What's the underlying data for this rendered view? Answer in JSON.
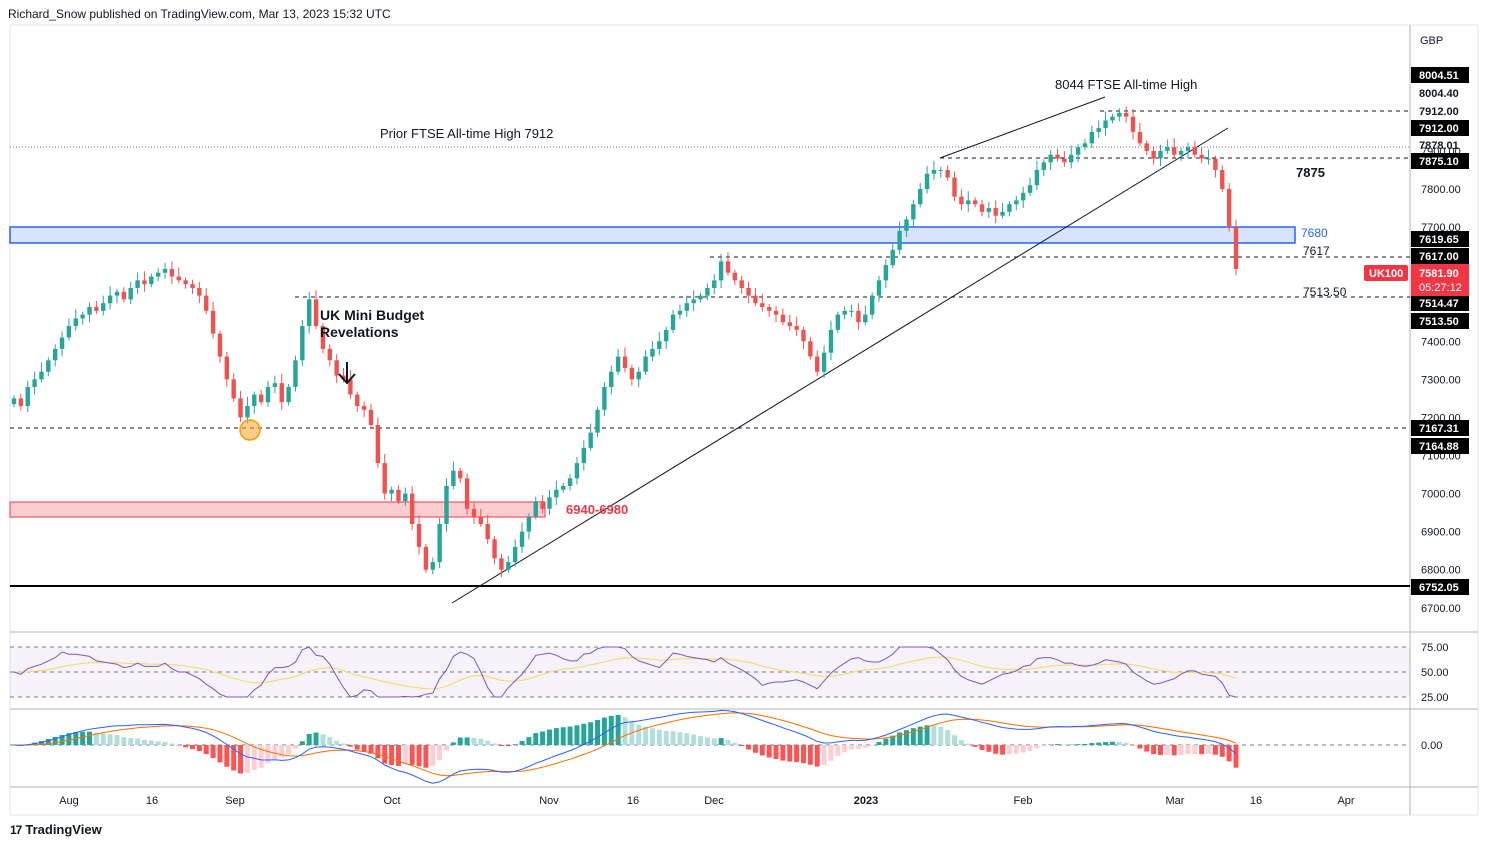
{
  "header": {
    "publisher": "Richard_Snow published on TradingView.com, Mar 13, 2023 15:32 UTC"
  },
  "footer": {
    "logo_text": "TradingView",
    "logo_mark": "17"
  },
  "colors": {
    "up": "#26a69a",
    "down": "#ef5350",
    "blue_zone": "#2962ff",
    "red_zone": "#f23645"
  },
  "chart_data": {
    "type": "candlestick",
    "symbol": "UK100",
    "currency": "GBP",
    "last_price": "7581.90",
    "countdown": "05:27:12",
    "x_ticks": [
      "Aug",
      "16",
      "Sep",
      "Oct",
      "Nov",
      "16",
      "Dec",
      "2023",
      "Feb",
      "Mar",
      "16",
      "Apr"
    ],
    "y_ticks": [
      "7900.00",
      "7800.00",
      "7700.00",
      "7600.00",
      "7500.00",
      "7400.00",
      "7300.00",
      "7200.00",
      "7100.00",
      "7000.00",
      "6900.00",
      "6800.00",
      "6700.00"
    ],
    "price_labels": [
      {
        "value": "8004.51",
        "style": "dark"
      },
      {
        "value": "8004.40",
        "style": "none"
      },
      {
        "value": "7912.00",
        "style": "none"
      },
      {
        "value": "7912.00",
        "style": "dark"
      },
      {
        "value": "7878.01",
        "style": "none"
      },
      {
        "value": "7875.10",
        "style": "dark"
      },
      {
        "value": "7619.65",
        "style": "dark"
      },
      {
        "value": "7617.00",
        "style": "dark"
      },
      {
        "value": "7514.47",
        "style": "dark"
      },
      {
        "value": "7513.50",
        "style": "dark"
      },
      {
        "value": "7167.31",
        "style": "dark"
      },
      {
        "value": "7164.88",
        "style": "dark"
      },
      {
        "value": "6752.05",
        "style": "dark"
      }
    ],
    "annotations": [
      {
        "text": "8044 FTSE All-time High"
      },
      {
        "text": "Prior FTSE All-time High 7912"
      },
      {
        "text": "7875"
      },
      {
        "text": "7680"
      },
      {
        "text": "7617"
      },
      {
        "text": "7513.50"
      },
      {
        "text": "UK Mini Budget"
      },
      {
        "text": "Revelations"
      },
      {
        "text": "6940-6980"
      }
    ],
    "zones": [
      {
        "label": "7680",
        "from": 7660,
        "to": 7700,
        "color": "blue"
      },
      {
        "label": "6940-6980",
        "from": 6940,
        "to": 6980,
        "color": "red"
      }
    ],
    "levels": [
      7912,
      7875,
      7617,
      7513.5,
      7167,
      6752
    ],
    "candles_close": [
      7250,
      7230,
      7280,
      7300,
      7320,
      7350,
      7380,
      7410,
      7440,
      7460,
      7470,
      7490,
      7480,
      7500,
      7520,
      7530,
      7510,
      7540,
      7560,
      7550,
      7570,
      7580,
      7590,
      7570,
      7560,
      7550,
      7540,
      7520,
      7480,
      7420,
      7360,
      7300,
      7250,
      7200,
      7230,
      7260,
      7240,
      7280,
      7290,
      7240,
      7280,
      7350,
      7440,
      7510,
      7440,
      7380,
      7350,
      7310,
      7300,
      7260,
      7230,
      7220,
      7180,
      7080,
      7000,
      7010,
      6980,
      7000,
      6920,
      6860,
      6800,
      6820,
      6920,
      7020,
      7060,
      7040,
      6960,
      6940,
      6920,
      6880,
      6830,
      6800,
      6820,
      6860,
      6900,
      6940,
      6980,
      6960,
      6990,
      7010,
      7020,
      7040,
      7080,
      7120,
      7160,
      7220,
      7280,
      7320,
      7360,
      7330,
      7300,
      7320,
      7360,
      7380,
      7400,
      7430,
      7470,
      7480,
      7500,
      7510,
      7520,
      7540,
      7560,
      7610,
      7580,
      7560,
      7540,
      7520,
      7500,
      7490,
      7480,
      7470,
      7450,
      7440,
      7430,
      7400,
      7360,
      7320,
      7370,
      7430,
      7470,
      7480,
      7480,
      7450,
      7470,
      7520,
      7560,
      7600,
      7640,
      7690,
      7720,
      7760,
      7800,
      7840,
      7850,
      7850,
      7830,
      7780,
      7760,
      7770,
      7760,
      7740,
      7750,
      7730,
      7740,
      7760,
      7770,
      7790,
      7810,
      7850,
      7870,
      7890,
      7880,
      7870,
      7890,
      7910,
      7920,
      7950,
      7960,
      7980,
      7990,
      8000,
      7990,
      7950,
      7920,
      7900,
      7880,
      7900,
      7910,
      7890,
      7900,
      7910,
      7890,
      7880,
      7880,
      7850,
      7800,
      7700,
      7590
    ],
    "rsi": {
      "levels": [
        "75.00",
        "50.00",
        "25.00"
      ]
    },
    "macd": {
      "zero_label": "0.00"
    }
  }
}
